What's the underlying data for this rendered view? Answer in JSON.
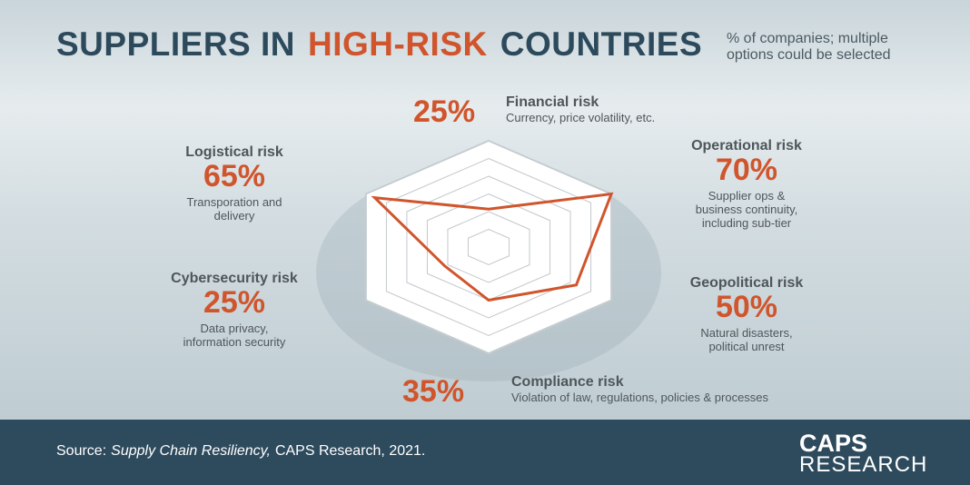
{
  "chart_data": {
    "type": "radar",
    "title_parts": [
      "SUPPLIERS IN",
      "HIGH-RISK",
      "COUNTRIES"
    ],
    "subtitle": "% of companies; multiple options could be selected",
    "categories": [
      "Financial risk",
      "Operational risk",
      "Geopolitical risk",
      "Compliance risk",
      "Cybersecurity risk",
      "Logistical risk"
    ],
    "descriptions": [
      "Currency, price volatility, etc.",
      "Supplier ops & business continuity, including sub-tier",
      "Natural disasters, political unrest",
      "Violation of law, regulations, policies & processes",
      "Data privacy, information security",
      "Transporation and delivery"
    ],
    "values": [
      25,
      70,
      50,
      35,
      25,
      65
    ],
    "value_labels": [
      "25%",
      "70%",
      "50%",
      "35%",
      "25%",
      "65%"
    ],
    "rlim": [
      0,
      70
    ],
    "color": "#d0552c",
    "source_parts": [
      "Source:",
      "Supply Chain Resiliency,",
      "CAPS Research, 2021."
    ],
    "logo": [
      "CAPS",
      "RESEARCH"
    ]
  }
}
